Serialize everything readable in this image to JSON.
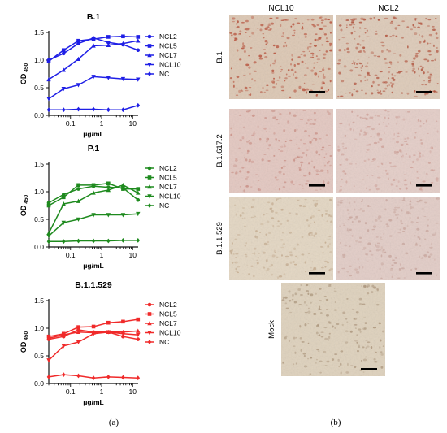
{
  "chart_data": [
    {
      "type": "line",
      "panel": "a",
      "title": "B.1",
      "xlabel": "μg/mL",
      "ylabel": "OD",
      "ylabel_sub": "450",
      "xscale": "log",
      "xlim": [
        0.02,
        15
      ],
      "ylim": [
        0,
        1.5
      ],
      "xticks": [
        "0.1",
        "1",
        "10"
      ],
      "yticks": [
        "0.0",
        "0.5",
        "1.0",
        "1.5"
      ],
      "grid": false,
      "legend": "right",
      "color": "#1f1fe6",
      "x": [
        0.02,
        0.06,
        0.18,
        0.55,
        1.65,
        4.9,
        14.8
      ],
      "series": [
        {
          "name": "NCL2",
          "marker": "circle",
          "values": [
            1.0,
            1.12,
            1.3,
            1.4,
            1.32,
            1.28,
            1.18
          ]
        },
        {
          "name": "NCL5",
          "marker": "square",
          "values": [
            0.98,
            1.18,
            1.35,
            1.38,
            1.42,
            1.43,
            1.42
          ]
        },
        {
          "name": "NCL7",
          "marker": "triangle",
          "values": [
            0.65,
            0.82,
            1.02,
            1.26,
            1.27,
            1.3,
            1.35
          ]
        },
        {
          "name": "NCL10",
          "marker": "tri-down",
          "values": [
            0.3,
            0.48,
            0.55,
            0.7,
            0.68,
            0.66,
            0.65
          ]
        },
        {
          "name": "NC",
          "marker": "diamond",
          "values": [
            0.1,
            0.1,
            0.11,
            0.11,
            0.1,
            0.1,
            0.18
          ]
        }
      ]
    },
    {
      "type": "line",
      "panel": "a",
      "title": "P.1",
      "xlabel": "μg/mL",
      "ylabel": "OD",
      "ylabel_sub": "450",
      "xscale": "log",
      "xlim": [
        0.02,
        15
      ],
      "ylim": [
        0,
        1.5
      ],
      "xticks": [
        "0.1",
        "1",
        "10"
      ],
      "yticks": [
        "0.0",
        "0.5",
        "1.0",
        "1.5"
      ],
      "grid": false,
      "legend": "right",
      "color": "#1e8a1e",
      "x": [
        0.02,
        0.06,
        0.18,
        0.55,
        1.65,
        4.9,
        14.8
      ],
      "series": [
        {
          "name": "NCL2",
          "marker": "circle",
          "values": [
            0.8,
            0.95,
            1.05,
            1.1,
            1.08,
            1.07,
            0.85
          ]
        },
        {
          "name": "NCL5",
          "marker": "square",
          "values": [
            0.75,
            0.9,
            1.12,
            1.12,
            1.15,
            1.05,
            1.05
          ]
        },
        {
          "name": "NCL7",
          "marker": "triangle",
          "values": [
            0.25,
            0.78,
            0.83,
            0.98,
            1.03,
            1.12,
            0.98
          ]
        },
        {
          "name": "NCL10",
          "marker": "tri-down",
          "values": [
            0.2,
            0.44,
            0.5,
            0.58,
            0.58,
            0.58,
            0.6
          ]
        },
        {
          "name": "NC",
          "marker": "diamond",
          "values": [
            0.1,
            0.1,
            0.11,
            0.11,
            0.11,
            0.12,
            0.12
          ]
        }
      ]
    },
    {
      "type": "line",
      "panel": "a",
      "title": "B.1.1.529",
      "xlabel": "μg/mL",
      "ylabel": "OD",
      "ylabel_sub": "450",
      "xscale": "log",
      "xlim": [
        0.02,
        15
      ],
      "ylim": [
        0,
        1.5
      ],
      "xticks": [
        "0.1",
        "1",
        "10"
      ],
      "yticks": [
        "0.0",
        "0.5",
        "1.0",
        "1.5"
      ],
      "grid": false,
      "legend": "right",
      "color": "#f02a2a",
      "x": [
        0.02,
        0.06,
        0.18,
        0.55,
        1.65,
        4.9,
        14.8
      ],
      "series": [
        {
          "name": "NCL2",
          "marker": "circle",
          "values": [
            0.8,
            0.85,
            0.97,
            0.93,
            0.93,
            0.85,
            0.8
          ]
        },
        {
          "name": "NCL5",
          "marker": "square",
          "values": [
            0.85,
            0.9,
            1.02,
            1.03,
            1.1,
            1.12,
            1.16
          ]
        },
        {
          "name": "NCL7",
          "marker": "triangle",
          "values": [
            0.82,
            0.88,
            0.93,
            0.92,
            0.93,
            0.93,
            0.95
          ]
        },
        {
          "name": "NCL10",
          "marker": "tri-down",
          "values": [
            0.42,
            0.68,
            0.75,
            0.9,
            0.93,
            0.9,
            0.88
          ]
        },
        {
          "name": "NC",
          "marker": "diamond",
          "values": [
            0.12,
            0.16,
            0.14,
            0.1,
            0.12,
            0.11,
            0.1
          ]
        }
      ]
    }
  ],
  "panel_b": {
    "columns": [
      "NCL10",
      "NCL2"
    ],
    "rows": [
      "B.1",
      "B.1.617.2",
      "B.1.1.529",
      "Mock"
    ],
    "tiles": [
      {
        "row": 0,
        "col": 0,
        "tone": "#dcc7b3",
        "dot": "#b5462f"
      },
      {
        "row": 0,
        "col": 1,
        "tone": "#ddcab8",
        "dot": "#b04a33"
      },
      {
        "row": 1,
        "col": 0,
        "tone": "#e3c7c0",
        "dot": "#c98b80"
      },
      {
        "row": 1,
        "col": 1,
        "tone": "#e4cdc7",
        "dot": "#cf9f96"
      },
      {
        "row": 2,
        "col": 0,
        "tone": "#e3d6c2",
        "dot": "#c3a98c"
      },
      {
        "row": 2,
        "col": 1,
        "tone": "#e2ccc6",
        "dot": "#c9a59c"
      },
      {
        "row": 3,
        "col": 0,
        "tone": "#ded1bc",
        "dot": "#a99176"
      }
    ]
  },
  "captions": {
    "a": "(a)",
    "b": "(b)"
  }
}
